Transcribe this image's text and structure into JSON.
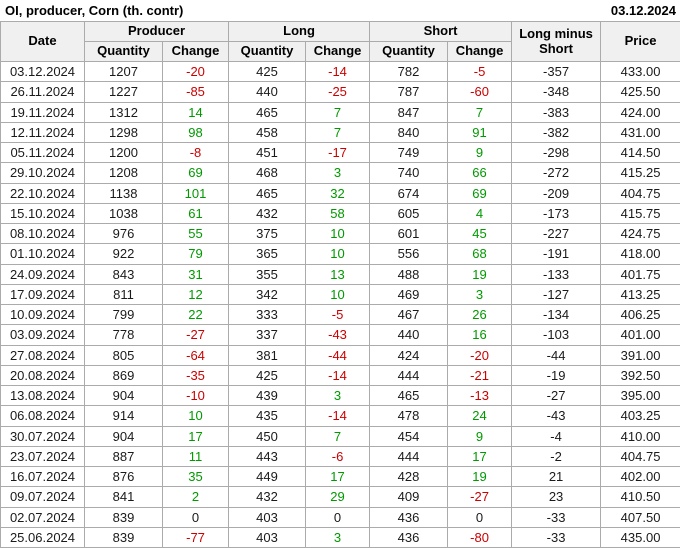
{
  "chart_data": {
    "type": "table",
    "title": "OI, producer, Corn (th. contr)",
    "report_date": "03.12.2024",
    "header": {
      "date": "Date",
      "producer": "Producer",
      "long": "Long",
      "short": "Short",
      "long_minus_short": "Long minus Short",
      "price": "Price",
      "quantity": "Quantity",
      "change": "Change"
    },
    "change_column_indexes": [
      2,
      4,
      6
    ],
    "rows": [
      [
        "03.12.2024",
        1207,
        -20,
        425,
        -14,
        782,
        -5,
        -357,
        "433.00"
      ],
      [
        "26.11.2024",
        1227,
        -85,
        440,
        -25,
        787,
        -60,
        -348,
        "425.50"
      ],
      [
        "19.11.2024",
        1312,
        14,
        465,
        7,
        847,
        7,
        -383,
        "424.00"
      ],
      [
        "12.11.2024",
        1298,
        98,
        458,
        7,
        840,
        91,
        -382,
        "431.00"
      ],
      [
        "05.11.2024",
        1200,
        -8,
        451,
        -17,
        749,
        9,
        -298,
        "414.50"
      ],
      [
        "29.10.2024",
        1208,
        69,
        468,
        3,
        740,
        66,
        -272,
        "415.25"
      ],
      [
        "22.10.2024",
        1138,
        101,
        465,
        32,
        674,
        69,
        -209,
        "404.75"
      ],
      [
        "15.10.2024",
        1038,
        61,
        432,
        58,
        605,
        4,
        -173,
        "415.75"
      ],
      [
        "08.10.2024",
        976,
        55,
        375,
        10,
        601,
        45,
        -227,
        "424.75"
      ],
      [
        "01.10.2024",
        922,
        79,
        365,
        10,
        556,
        68,
        -191,
        "418.00"
      ],
      [
        "24.09.2024",
        843,
        31,
        355,
        13,
        488,
        19,
        -133,
        "401.75"
      ],
      [
        "17.09.2024",
        811,
        12,
        342,
        10,
        469,
        3,
        -127,
        "413.25"
      ],
      [
        "10.09.2024",
        799,
        22,
        333,
        -5,
        467,
        26,
        -134,
        "406.25"
      ],
      [
        "03.09.2024",
        778,
        -27,
        337,
        -43,
        440,
        16,
        -103,
        "401.00"
      ],
      [
        "27.08.2024",
        805,
        -64,
        381,
        -44,
        424,
        -20,
        -44,
        "391.00"
      ],
      [
        "20.08.2024",
        869,
        -35,
        425,
        -14,
        444,
        -21,
        -19,
        "392.50"
      ],
      [
        "13.08.2024",
        904,
        -10,
        439,
        3,
        465,
        -13,
        -27,
        "395.00"
      ],
      [
        "06.08.2024",
        914,
        10,
        435,
        -14,
        478,
        24,
        -43,
        "403.25"
      ],
      [
        "30.07.2024",
        904,
        17,
        450,
        7,
        454,
        9,
        -4,
        "410.00"
      ],
      [
        "23.07.2024",
        887,
        11,
        443,
        -6,
        444,
        17,
        -2,
        "404.75"
      ],
      [
        "16.07.2024",
        876,
        35,
        449,
        17,
        428,
        19,
        21,
        "402.00"
      ],
      [
        "09.07.2024",
        841,
        2,
        432,
        29,
        409,
        -27,
        23,
        "410.50"
      ],
      [
        "02.07.2024",
        839,
        0,
        403,
        0,
        436,
        0,
        -33,
        "407.50"
      ],
      [
        "25.06.2024",
        839,
        -77,
        403,
        3,
        436,
        -80,
        -33,
        "435.00"
      ]
    ]
  },
  "colors": {
    "positive": "#009900",
    "negative": "#cc0000",
    "text": "#1a1a1a",
    "header_bg": "#f0f0f0",
    "border": "#ababab"
  }
}
